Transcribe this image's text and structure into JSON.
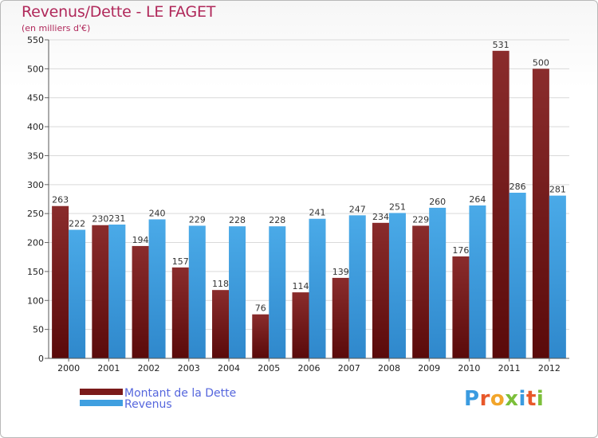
{
  "chart_data": {
    "type": "bar",
    "title": "Revenus/Dette - LE FAGET",
    "subtitle": "(en milliers d'€)",
    "categories": [
      "2000",
      "2001",
      "2002",
      "2003",
      "2004",
      "2005",
      "2006",
      "2007",
      "2008",
      "2009",
      "2010",
      "2011",
      "2012"
    ],
    "series": [
      {
        "name": "Montant de la Dette",
        "color": "#7a1a1a",
        "values": [
          263,
          230,
          194,
          157,
          118,
          76,
          114,
          139,
          234,
          229,
          176,
          531,
          500
        ]
      },
      {
        "name": "Revenus",
        "color": "#3f9fe0",
        "values": [
          222,
          231,
          240,
          229,
          228,
          228,
          241,
          247,
          251,
          260,
          264,
          286,
          281
        ]
      }
    ],
    "yticks": [
      "0",
      "50",
      "100",
      "150",
      "200",
      "250",
      "300",
      "350",
      "400",
      "450",
      "500",
      "550"
    ],
    "ylim": [
      0,
      550
    ],
    "grid": true,
    "legend": "bottom-left"
  },
  "logo": {
    "letters": [
      "P",
      "r",
      "o",
      "x",
      "i",
      "t",
      "i"
    ],
    "colors": [
      "#3a9be0",
      "#e8582a",
      "#f2a52a",
      "#7cbf3a",
      "#3a9be0",
      "#e8582a",
      "#7cbf3a"
    ]
  }
}
